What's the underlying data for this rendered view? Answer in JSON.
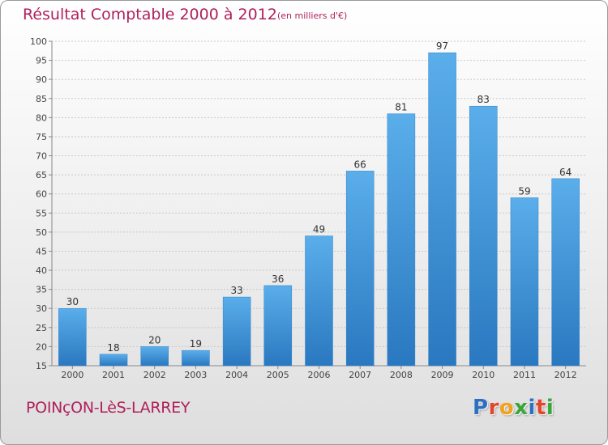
{
  "chart_data": {
    "type": "bar",
    "title": "Résultat Comptable 2000 à 2012",
    "subtitle": "(en milliers d'€)",
    "categories": [
      "2000",
      "2001",
      "2002",
      "2003",
      "2004",
      "2005",
      "2006",
      "2007",
      "2008",
      "2009",
      "2010",
      "2011",
      "2012"
    ],
    "values": [
      30,
      18,
      20,
      19,
      33,
      36,
      49,
      66,
      81,
      97,
      83,
      59,
      64
    ],
    "ylim": [
      15,
      100
    ],
    "yticks": [
      15,
      20,
      25,
      30,
      35,
      40,
      45,
      50,
      55,
      60,
      65,
      70,
      75,
      80,
      85,
      90,
      95,
      100
    ],
    "xlabel": "",
    "ylabel": "",
    "grid": true,
    "bar_color": "#3a8fd8"
  },
  "footer": {
    "commune": "POINçON-LèS-LARREY",
    "logo_letters": [
      {
        "char": "P",
        "color": "#2f6fc0"
      },
      {
        "char": "r",
        "color": "#e0462b"
      },
      {
        "char": "o",
        "color": "#f2a21b"
      },
      {
        "char": "x",
        "color": "#3aa63a"
      },
      {
        "char": "i",
        "color": "#2f6fc0"
      },
      {
        "char": "t",
        "color": "#e0462b"
      },
      {
        "char": "i",
        "color": "#3aa63a"
      }
    ]
  }
}
